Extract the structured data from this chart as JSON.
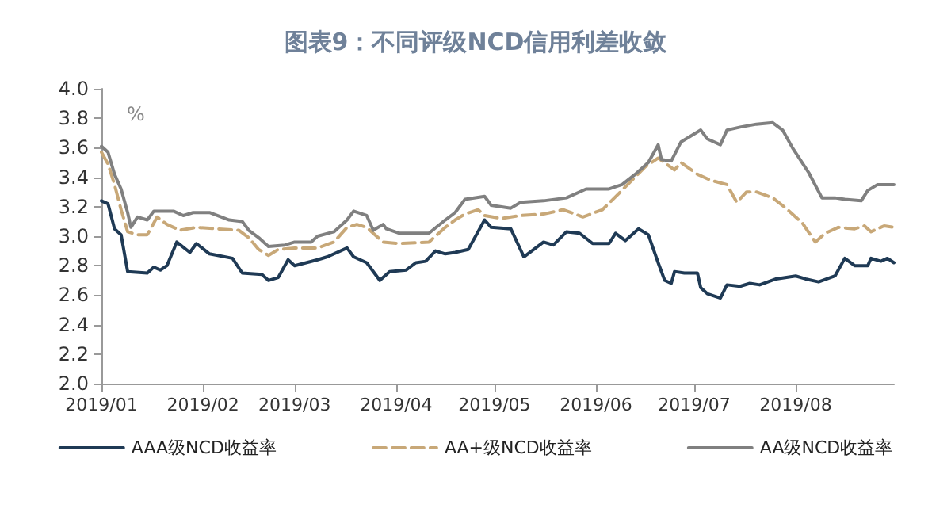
{
  "chart_data": {
    "type": "line",
    "title": "图表9：不同评级NCD信用利差收敛",
    "ylabel": "%",
    "legend": "bottom",
    "grid": false,
    "marker": "none",
    "xlim": [
      "2019-01-01",
      "2019-08-31"
    ],
    "xticks": [
      {
        "value": "2019-01-01",
        "label": "2019/01"
      },
      {
        "value": "2019-02-01",
        "label": "2019/02"
      },
      {
        "value": "2019-03-01",
        "label": "2019/03"
      },
      {
        "value": "2019-04-01",
        "label": "2019/04"
      },
      {
        "value": "2019-05-01",
        "label": "2019/05"
      },
      {
        "value": "2019-06-01",
        "label": "2019/06"
      },
      {
        "value": "2019-07-01",
        "label": "2019/07"
      },
      {
        "value": "2019-08-01",
        "label": "2019/08"
      }
    ],
    "ylim": [
      2,
      4
    ],
    "yticks": [
      {
        "value": 2,
        "label": "2.0"
      },
      {
        "value": 2.2,
        "label": "2.2"
      },
      {
        "value": 2.4,
        "label": "2.4"
      },
      {
        "value": 2.6,
        "label": "2.6"
      },
      {
        "value": 2.8,
        "label": "2.8"
      },
      {
        "value": 3,
        "label": "3.0"
      },
      {
        "value": 3.2,
        "label": "3.2"
      },
      {
        "value": 3.4,
        "label": "3.4"
      },
      {
        "value": 3.6,
        "label": "3.6"
      },
      {
        "value": 3.8,
        "label": "3.8"
      },
      {
        "value": 4,
        "label": "4.0"
      }
    ],
    "series": [
      {
        "name": "AAA级NCD收益率",
        "color": "#1f3a55",
        "line_style": "solid",
        "x": [
          "2019-01-01",
          "2019-01-03",
          "2019-01-05",
          "2019-01-07",
          "2019-01-09",
          "2019-01-15",
          "2019-01-17",
          "2019-01-19",
          "2019-01-21",
          "2019-01-24",
          "2019-01-28",
          "2019-01-30",
          "2019-02-03",
          "2019-02-10",
          "2019-02-13",
          "2019-02-19",
          "2019-02-21",
          "2019-02-24",
          "2019-02-27",
          "2019-03-01",
          "2019-03-08",
          "2019-03-11",
          "2019-03-17",
          "2019-03-19",
          "2019-03-23",
          "2019-03-27",
          "2019-03-30",
          "2019-04-04",
          "2019-04-07",
          "2019-04-10",
          "2019-04-13",
          "2019-04-16",
          "2019-04-19",
          "2019-04-23",
          "2019-04-28",
          "2019-04-30",
          "2019-05-06",
          "2019-05-10",
          "2019-05-16",
          "2019-05-19",
          "2019-05-23",
          "2019-05-27",
          "2019-05-31",
          "2019-06-05",
          "2019-06-07",
          "2019-06-10",
          "2019-06-14",
          "2019-06-17",
          "2019-06-20",
          "2019-06-22",
          "2019-06-24",
          "2019-06-25",
          "2019-06-28",
          "2019-07-02",
          "2019-07-03",
          "2019-07-05",
          "2019-07-09",
          "2019-07-11",
          "2019-07-15",
          "2019-07-18",
          "2019-07-21",
          "2019-07-26",
          "2019-08-01",
          "2019-08-04",
          "2019-08-08",
          "2019-08-13",
          "2019-08-16",
          "2019-08-19",
          "2019-08-23",
          "2019-08-24",
          "2019-08-27",
          "2019-08-29",
          "2019-08-31"
        ],
        "values": [
          3.24,
          3.22,
          3.05,
          3.01,
          2.76,
          2.75,
          2.79,
          2.77,
          2.8,
          2.96,
          2.89,
          2.95,
          2.88,
          2.85,
          2.75,
          2.74,
          2.7,
          2.72,
          2.84,
          2.8,
          2.84,
          2.86,
          2.92,
          2.86,
          2.82,
          2.7,
          2.76,
          2.77,
          2.82,
          2.83,
          2.9,
          2.88,
          2.89,
          2.91,
          3.11,
          3.06,
          3.05,
          2.86,
          2.96,
          2.94,
          3.03,
          3.02,
          2.95,
          2.95,
          3.02,
          2.97,
          3.05,
          3.01,
          2.82,
          2.7,
          2.68,
          2.76,
          2.75,
          2.75,
          2.65,
          2.61,
          2.58,
          2.67,
          2.66,
          2.68,
          2.67,
          2.71,
          2.73,
          2.71,
          2.69,
          2.73,
          2.85,
          2.8,
          2.8,
          2.85,
          2.83,
          2.85,
          2.82
        ]
      },
      {
        "name": "AA+级NCD收益率",
        "color": "#c8a878",
        "line_style": "dashed",
        "x": [
          "2019-01-01",
          "2019-01-03",
          "2019-01-05",
          "2019-01-07",
          "2019-01-09",
          "2019-01-12",
          "2019-01-15",
          "2019-01-18",
          "2019-01-21",
          "2019-01-25",
          "2019-01-30",
          "2019-02-05",
          "2019-02-12",
          "2019-02-15",
          "2019-02-18",
          "2019-02-21",
          "2019-02-24",
          "2019-03-01",
          "2019-03-08",
          "2019-03-13",
          "2019-03-17",
          "2019-03-20",
          "2019-03-23",
          "2019-03-28",
          "2019-04-02",
          "2019-04-11",
          "2019-04-16",
          "2019-04-19",
          "2019-04-22",
          "2019-04-26",
          "2019-04-28",
          "2019-05-03",
          "2019-05-09",
          "2019-05-16",
          "2019-05-22",
          "2019-05-28",
          "2019-06-03",
          "2019-06-08",
          "2019-06-12",
          "2019-06-16",
          "2019-06-20",
          "2019-06-25",
          "2019-06-27",
          "2019-07-02",
          "2019-07-06",
          "2019-07-11",
          "2019-07-14",
          "2019-07-17",
          "2019-07-20",
          "2019-07-25",
          "2019-07-29",
          "2019-08-03",
          "2019-08-07",
          "2019-08-10",
          "2019-08-14",
          "2019-08-19",
          "2019-08-22",
          "2019-08-24",
          "2019-08-28",
          "2019-08-31"
        ],
        "values": [
          3.57,
          3.49,
          3.35,
          3.18,
          3.03,
          3.01,
          3.01,
          3.13,
          3.08,
          3.04,
          3.06,
          3.05,
          3.04,
          2.99,
          2.91,
          2.87,
          2.91,
          2.92,
          2.92,
          2.96,
          3.06,
          3.08,
          3.06,
          2.96,
          2.95,
          2.96,
          3.06,
          3.11,
          3.15,
          3.18,
          3.14,
          3.12,
          3.14,
          3.15,
          3.18,
          3.13,
          3.18,
          3.29,
          3.38,
          3.47,
          3.53,
          3.45,
          3.5,
          3.42,
          3.38,
          3.35,
          3.23,
          3.3,
          3.3,
          3.26,
          3.19,
          3.09,
          2.96,
          3.02,
          3.06,
          3.05,
          3.07,
          3.03,
          3.07,
          3.06
        ]
      },
      {
        "name": "AA级NCD收益率",
        "color": "#808080",
        "line_style": "solid",
        "x": [
          "2019-01-01",
          "2019-01-03",
          "2019-01-05",
          "2019-01-07",
          "2019-01-09",
          "2019-01-10",
          "2019-01-12",
          "2019-01-15",
          "2019-01-17",
          "2019-01-21",
          "2019-01-23",
          "2019-01-26",
          "2019-01-29",
          "2019-02-03",
          "2019-02-09",
          "2019-02-13",
          "2019-02-15",
          "2019-02-18",
          "2019-02-21",
          "2019-02-26",
          "2019-03-01",
          "2019-03-06",
          "2019-03-08",
          "2019-03-13",
          "2019-03-17",
          "2019-03-19",
          "2019-03-23",
          "2019-03-25",
          "2019-03-28",
          "2019-03-29",
          "2019-04-02",
          "2019-04-08",
          "2019-04-11",
          "2019-04-16",
          "2019-04-19",
          "2019-04-22",
          "2019-04-28",
          "2019-04-30",
          "2019-05-06",
          "2019-05-09",
          "2019-05-16",
          "2019-05-23",
          "2019-05-29",
          "2019-06-05",
          "2019-06-09",
          "2019-06-13",
          "2019-06-17",
          "2019-06-20",
          "2019-06-21",
          "2019-06-24",
          "2019-06-27",
          "2019-07-03",
          "2019-07-05",
          "2019-07-09",
          "2019-07-11",
          "2019-07-15",
          "2019-07-20",
          "2019-07-25",
          "2019-07-28",
          "2019-07-31",
          "2019-08-05",
          "2019-08-09",
          "2019-08-13",
          "2019-08-16",
          "2019-08-21",
          "2019-08-23",
          "2019-08-26",
          "2019-08-29",
          "2019-08-31"
        ],
        "values": [
          3.61,
          3.57,
          3.42,
          3.32,
          3.16,
          3.06,
          3.13,
          3.11,
          3.17,
          3.17,
          3.17,
          3.14,
          3.16,
          3.16,
          3.11,
          3.1,
          3.04,
          2.99,
          2.93,
          2.94,
          2.96,
          2.96,
          3,
          3.03,
          3.11,
          3.17,
          3.14,
          3.04,
          3.08,
          3.05,
          3.02,
          3.02,
          3.02,
          3.11,
          3.16,
          3.25,
          3.27,
          3.21,
          3.19,
          3.23,
          3.24,
          3.26,
          3.32,
          3.32,
          3.35,
          3.42,
          3.5,
          3.62,
          3.52,
          3.51,
          3.64,
          3.72,
          3.66,
          3.62,
          3.72,
          3.74,
          3.76,
          3.77,
          3.72,
          3.6,
          3.43,
          3.26,
          3.26,
          3.25,
          3.24,
          3.31,
          3.35,
          3.35,
          3.35
        ]
      }
    ]
  }
}
